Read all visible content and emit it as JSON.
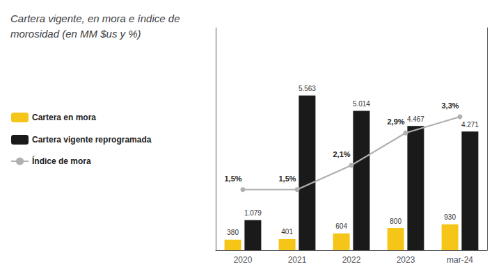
{
  "chart_data": {
    "type": "bar",
    "title": "Cartera vigente, en mora e índice de\nmorosidad (en MM $us y %)",
    "categories": [
      "2020",
      "2021",
      "2022",
      "2023",
      "mar-24"
    ],
    "series": [
      {
        "name": "Cartera en mora",
        "type": "bar",
        "color": "#F5C518",
        "values": [
          380,
          401,
          604,
          800,
          930
        ]
      },
      {
        "name": "Cartera vigente reprogramada",
        "type": "bar",
        "color": "#1a1a1a",
        "values": [
          1079,
          5563,
          5014,
          4467,
          4271
        ],
        "value_labels": [
          "1.079",
          "5.563",
          "5.014",
          "4.467",
          "4.271"
        ]
      },
      {
        "name": "Índice de mora",
        "type": "line",
        "axis": "y2",
        "color": "#b0b0b0",
        "marker": "circle",
        "values": [
          1.5,
          1.5,
          2.1,
          2.9,
          3.3
        ],
        "value_labels": [
          "1,5%",
          "1,5%",
          "2,1%",
          "2,9%",
          "3,3%"
        ]
      }
    ],
    "ylim": [
      0,
      8000
    ],
    "y2lim": [
      0,
      5.5
    ],
    "grid": false,
    "legend": "left",
    "data_labels": true,
    "tick_labels": "x"
  }
}
